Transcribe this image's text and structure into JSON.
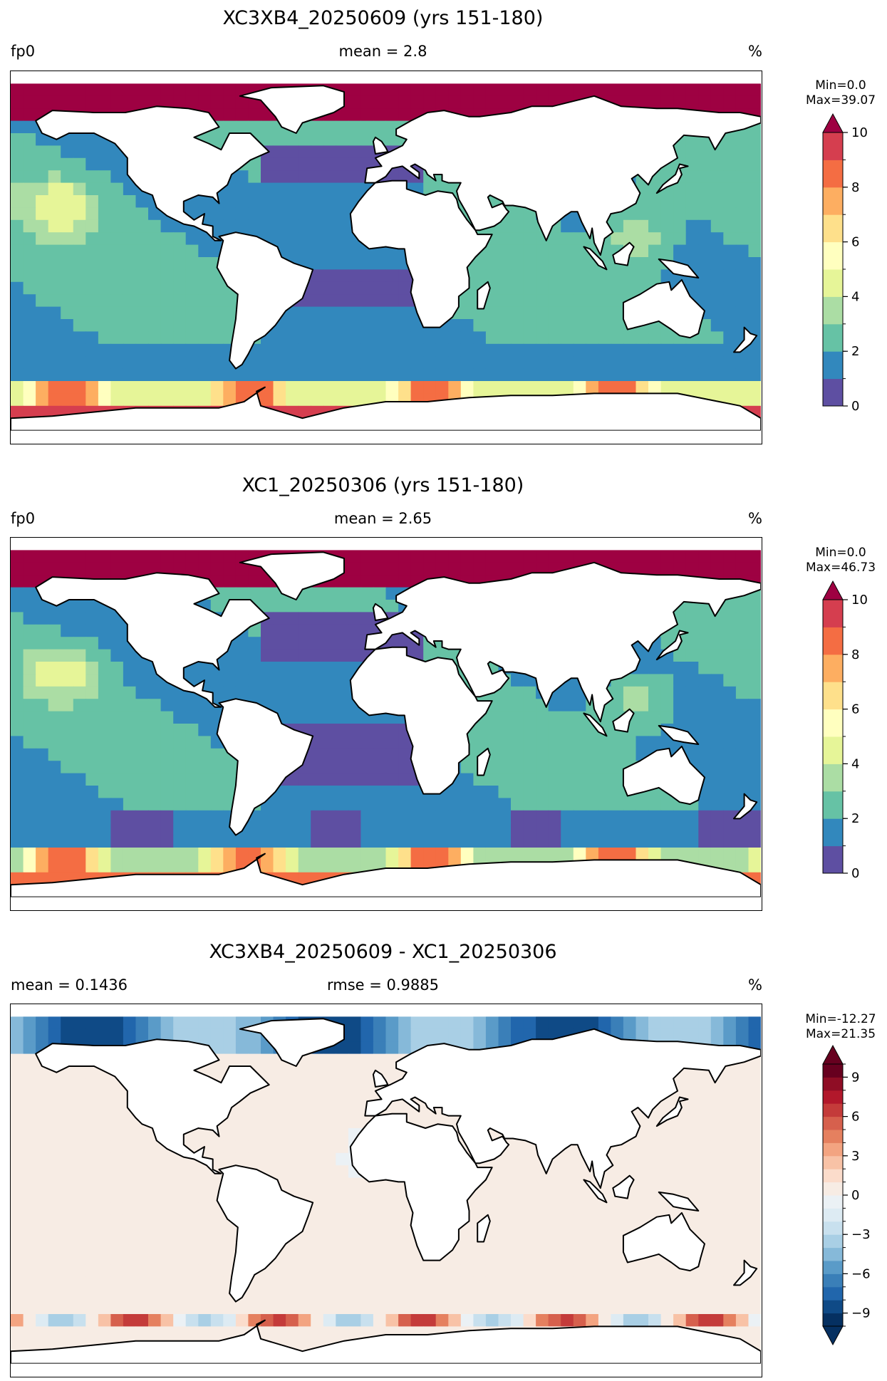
{
  "panels": [
    {
      "title": "XC3XB4_20250609 (yrs 151-180)",
      "left_label": "fp0",
      "center_label": "mean = 2.8",
      "right_label": "%",
      "min_text": "Min=0.0",
      "max_text": "Max=39.07"
    },
    {
      "title": "XC1_20250306 (yrs 151-180)",
      "left_label": "fp0",
      "center_label": "mean = 2.65",
      "right_label": "%",
      "min_text": "Min=0.0",
      "max_text": "Max=46.73"
    },
    {
      "title": "XC3XB4_20250609 - XC1_20250306",
      "left_label": "mean = 0.1436",
      "center_label": "rmse = 0.9885",
      "right_label": "%",
      "min_text": "Min=-12.27",
      "max_text": "Max=21.35"
    }
  ],
  "chart_data": [
    {
      "type": "heatmap",
      "title": "XC3XB4_20250609 (yrs 151-180)",
      "variable": "fp0",
      "units": "%",
      "mean": 2.8,
      "min": 0.0,
      "max": 39.07,
      "colorbar": {
        "colormap": "RdYlBu_r-like (purple-blue-green-yellow-orange-red)",
        "levels": [
          0,
          1,
          2,
          3,
          4,
          5,
          6,
          7,
          8,
          9,
          10
        ],
        "tick_labels": [
          "0",
          "2",
          "4",
          "6",
          "8",
          "10"
        ],
        "extend": "max",
        "colors": [
          "#5e4fa2",
          "#3288bd",
          "#66c2a5",
          "#abdda4",
          "#e6f598",
          "#ffffbf",
          "#fee08b",
          "#fdae61",
          "#f46d43",
          "#d53e4f",
          "#9e0142"
        ]
      }
    },
    {
      "type": "heatmap",
      "title": "XC1_20250306 (yrs 151-180)",
      "variable": "fp0",
      "units": "%",
      "mean": 2.65,
      "min": 0.0,
      "max": 46.73,
      "colorbar": {
        "levels": [
          0,
          1,
          2,
          3,
          4,
          5,
          6,
          7,
          8,
          9,
          10
        ],
        "tick_labels": [
          "0",
          "2",
          "4",
          "6",
          "8",
          "10"
        ],
        "extend": "max",
        "colors": [
          "#5e4fa2",
          "#3288bd",
          "#66c2a5",
          "#abdda4",
          "#e6f598",
          "#ffffbf",
          "#fee08b",
          "#fdae61",
          "#f46d43",
          "#d53e4f",
          "#9e0142"
        ]
      }
    },
    {
      "type": "heatmap",
      "title": "XC3XB4_20250609 - XC1_20250306",
      "units": "%",
      "mean": 0.1436,
      "rmse": 0.9885,
      "min": -12.27,
      "max": 21.35,
      "colorbar": {
        "levels": [
          -10,
          -9,
          -8,
          -7,
          -6,
          -5,
          -4,
          -3,
          -2,
          -1,
          0,
          1,
          2,
          3,
          4,
          5,
          6,
          7,
          8,
          9,
          10
        ],
        "tick_labels": [
          "-9",
          "-6",
          "-3",
          "0",
          "3",
          "6",
          "9"
        ],
        "extend": "both",
        "colors": [
          "#053061",
          "#0f4a86",
          "#2166ac",
          "#3a7fb8",
          "#5a9bc8",
          "#86b9d9",
          "#a9cfe5",
          "#c8e0ee",
          "#ddebf3",
          "#ebf1f5",
          "#f7ece4",
          "#fbdccb",
          "#f8c2a6",
          "#f3a481",
          "#e5805f",
          "#d6604d",
          "#c43b3a",
          "#b2182b",
          "#8f0d25",
          "#67001f"
        ]
      }
    }
  ]
}
